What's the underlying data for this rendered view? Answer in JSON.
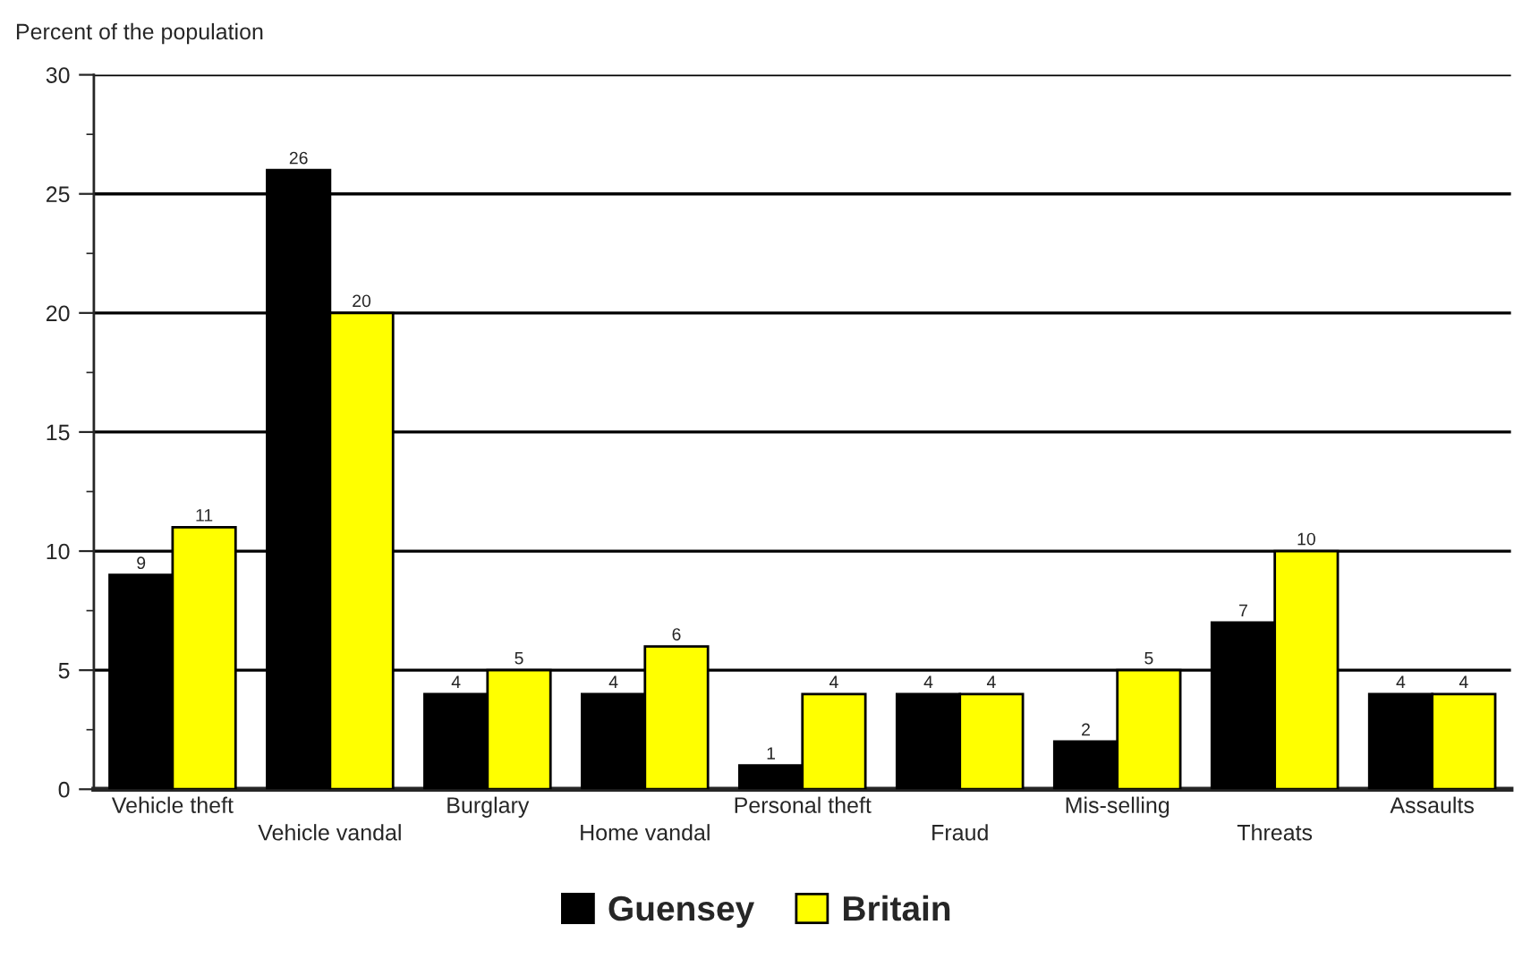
{
  "chart_data": {
    "type": "bar",
    "ylabel": "Percent of the population",
    "categories": [
      "Vehicle theft",
      "Vehicle vandal",
      "Burglary",
      "Home vandal",
      "Personal theft",
      "Fraud",
      "Mis-selling",
      "Threats",
      "Assaults"
    ],
    "series": [
      {
        "name": "Guensey",
        "color": "#000000",
        "values": [
          9,
          26,
          4,
          4,
          1,
          4,
          2,
          7,
          4
        ]
      },
      {
        "name": "Britain",
        "color": "#ffff00",
        "values": [
          11,
          20,
          5,
          6,
          4,
          4,
          5,
          10,
          4
        ]
      }
    ],
    "ylim": [
      0,
      30
    ],
    "yticks": [
      0,
      5,
      10,
      15,
      20,
      25,
      30
    ],
    "grid": "y",
    "legend": "bottom",
    "data_labels": true
  }
}
